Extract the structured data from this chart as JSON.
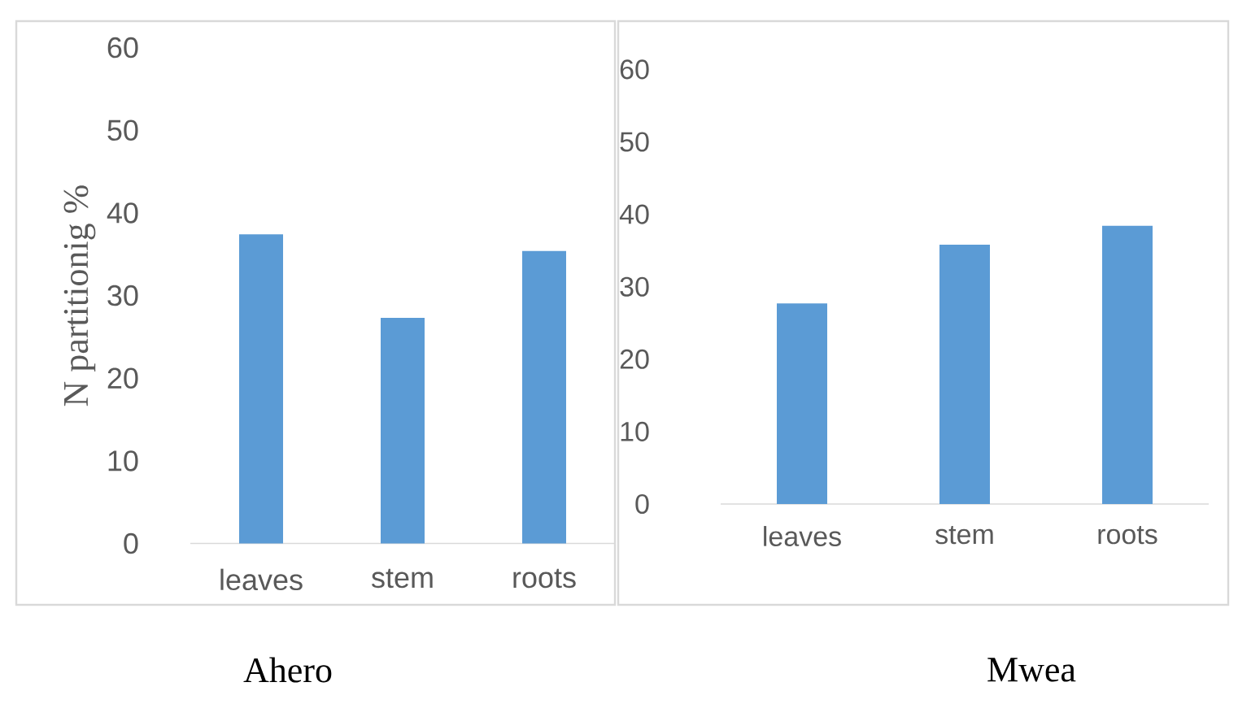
{
  "chart_data": [
    {
      "type": "bar",
      "title": "Ahero",
      "ylabel": "N partitionig %",
      "categories": [
        "leaves",
        "stem",
        "roots"
      ],
      "values": [
        37.4,
        27.3,
        35.4
      ],
      "color": "#5b9bd5",
      "ylim": [
        0,
        60
      ],
      "yticks": [
        0,
        10,
        20,
        30,
        40,
        50,
        60
      ]
    },
    {
      "type": "bar",
      "title": "Mwea",
      "categories": [
        "leaves",
        "stem",
        "roots"
      ],
      "values": [
        27.7,
        35.8,
        38.4
      ],
      "color": "#5b9bd5",
      "ylim": [
        0,
        60
      ],
      "yticks": [
        0,
        10,
        20,
        30,
        40,
        50,
        60
      ]
    }
  ]
}
